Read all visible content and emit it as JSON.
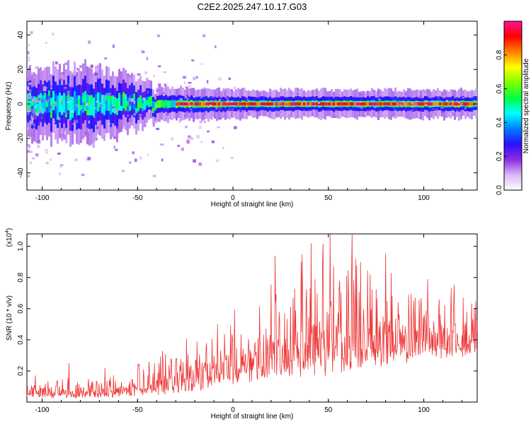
{
  "title": "C2E2.2025.247.10.17.G03",
  "colors": {
    "snr_line": "#ee3333",
    "axis": "#000000",
    "spectrum_band_outer": "#c9a6f5",
    "spectrum_band_inner": "#4b12e8"
  },
  "chart_data": [
    {
      "type": "heatmap",
      "name": "spectrogram",
      "xlabel": "Height of straight line (km)",
      "ylabel": "Frequency (Hz)",
      "xlim": [
        -108,
        128
      ],
      "ylim": [
        -50,
        48
      ],
      "x_ticks": [
        -100,
        -50,
        0,
        50,
        100
      ],
      "x_tick_labels": [
        "-100",
        "-50",
        "0",
        "50",
        "100"
      ],
      "y_ticks": [
        -40,
        -20,
        0,
        20,
        40
      ],
      "y_tick_labels": [
        "-40",
        "-20",
        "0",
        "20",
        "40"
      ],
      "band_center_hz": 0,
      "band_halfwidth_hz": [
        {
          "x": -105,
          "value": 12
        },
        {
          "x": -75,
          "value": 13
        },
        {
          "x": -50,
          "value": 9
        },
        {
          "x": -40,
          "value": 5
        },
        {
          "x": 0,
          "value": 4
        },
        {
          "x": 128,
          "value": 4
        }
      ],
      "peak_line_from_x": -30,
      "colorbar": {
        "label": "Normalized spectral amplitude",
        "range": [
          0,
          1
        ],
        "ticks": [
          0.0,
          0.2,
          0.4,
          0.6,
          0.8
        ],
        "tick_labels": [
          "0.0",
          "0.2",
          "0.4",
          "0.6",
          "0.8"
        ],
        "stops": [
          "#ffffff",
          "#d7b7f7",
          "#8a2be2",
          "#2b0fff",
          "#0080ff",
          "#00ffff",
          "#00ff40",
          "#80ff00",
          "#ffff00",
          "#ff8000",
          "#ff0000",
          "#ff1493"
        ]
      }
    },
    {
      "type": "line",
      "name": "snr",
      "xlabel": "Height of straight line (km)",
      "ylabel": "SNR (10 * v/v)",
      "y_unit_label": "(x10",
      "y_unit_exponent": "4",
      "y_unit_close": ")",
      "xlim": [
        -108,
        128
      ],
      "ylim": [
        0,
        1.08
      ],
      "x_ticks": [
        -100,
        -50,
        0,
        50,
        100
      ],
      "x_tick_labels": [
        "-100",
        "-50",
        "0",
        "50",
        "100"
      ],
      "y_ticks": [
        0.2,
        0.4,
        0.6,
        0.8,
        1.0
      ],
      "y_tick_labels": [
        "0.2",
        "0.4",
        "0.6",
        "0.8",
        "1.0"
      ],
      "series": [
        {
          "name": "SNR",
          "envelope": [
            {
              "x": -108,
              "low": 0.02,
              "high": 0.12
            },
            {
              "x": -60,
              "low": 0.03,
              "high": 0.14
            },
            {
              "x": -40,
              "low": 0.04,
              "high": 0.25
            },
            {
              "x": -20,
              "low": 0.06,
              "high": 0.35
            },
            {
              "x": -5,
              "low": 0.1,
              "high": 0.45
            },
            {
              "x": 10,
              "low": 0.12,
              "high": 0.55
            },
            {
              "x": 25,
              "low": 0.15,
              "high": 0.7
            },
            {
              "x": 40,
              "low": 0.15,
              "high": 0.8
            },
            {
              "x": 60,
              "low": 0.18,
              "high": 0.8
            },
            {
              "x": 80,
              "low": 0.22,
              "high": 0.72
            },
            {
              "x": 100,
              "low": 0.26,
              "high": 0.66
            },
            {
              "x": 128,
              "low": 0.3,
              "high": 0.6
            }
          ],
          "peaks": [
            {
              "x": -86,
              "value": 0.25
            },
            {
              "x": -67,
              "value": 0.22
            },
            {
              "x": -44,
              "value": 0.26
            },
            {
              "x": -8,
              "value": 0.5
            },
            {
              "x": 22,
              "value": 0.94
            },
            {
              "x": 41,
              "value": 1.02
            },
            {
              "x": 47,
              "value": 0.89
            },
            {
              "x": 51,
              "value": 1.08
            },
            {
              "x": 56,
              "value": 0.78
            },
            {
              "x": 67,
              "value": 0.9
            },
            {
              "x": 72,
              "value": 0.82
            },
            {
              "x": 102,
              "value": 0.79
            }
          ]
        }
      ]
    }
  ]
}
